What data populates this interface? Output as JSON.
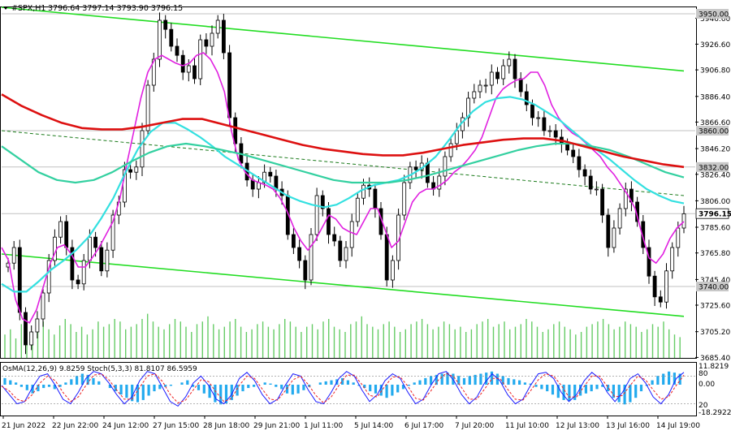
{
  "header": {
    "symbol_text": "#SPX,H1",
    "ohlc_text": "3796.64 3797.14 3793.90 3796.15"
  },
  "colors": {
    "background": "#ffffff",
    "candle": "#000000",
    "channel": "#22dd22",
    "ema_magenta": "#e020e0",
    "ema_cyan": "#33e0e0",
    "ema_teal": "#33d0a0",
    "ema_red": "#dd1010",
    "volume": "#66cc66",
    "osma_bar": "#22aaee",
    "stoch_main": "#1a1aff",
    "stoch_signal": "#ee2222",
    "price_tag_bg": "#c8c8c8"
  },
  "chart_data": {
    "type": "line",
    "title": "#SPX,H1",
    "ohlc": {
      "open": 3796.64,
      "high": 3797.14,
      "low": 3793.9,
      "close": 3796.15
    },
    "ylim": [
      3685.0,
      3955.0
    ],
    "y_ticks": [
      "3946.60",
      "3926.60",
      "3906.80",
      "3886.40",
      "3866.60",
      "3846.20",
      "3826.40",
      "3806.00",
      "3785.60",
      "3765.80",
      "3745.40",
      "3725.60",
      "3705.20",
      "3685.40"
    ],
    "x_ticks": [
      "21 Jun 2022",
      "22 Jun 22:00",
      "24 Jun 12:00",
      "27 Jun 15:00",
      "28 Jun 18:00",
      "29 Jun 21:00",
      "1 Jul 11:00",
      "5 Jul 14:00",
      "6 Jul 17:00",
      "7 Jul 20:00",
      "11 Jul 10:00",
      "12 Jul 13:00",
      "13 Jul 16:00",
      "14 Jul 19:00"
    ],
    "price_levels": [
      {
        "label": "3950.00",
        "value": 3950.0
      },
      {
        "label": "3860.00",
        "value": 3860.0
      },
      {
        "label": "3832.00",
        "value": 3832.0
      },
      {
        "label": "3796.15",
        "value": 3796.15,
        "current": true
      },
      {
        "label": "3740.00",
        "value": 3740.0
      }
    ],
    "close_series": [
      3758,
      3770,
      3720,
      3695,
      3705,
      3715,
      3735,
      3760,
      3778,
      3790,
      3770,
      3745,
      3742,
      3760,
      3778,
      3770,
      3752,
      3768,
      3795,
      3805,
      3830,
      3828,
      3832,
      3860,
      3895,
      3915,
      3945,
      3938,
      3925,
      3918,
      3905,
      3910,
      3900,
      3930,
      3925,
      3935,
      3945,
      3920,
      3870,
      3850,
      3835,
      3822,
      3815,
      3820,
      3828,
      3825,
      3815,
      3810,
      3780,
      3770,
      3760,
      3745,
      3780,
      3810,
      3800,
      3780,
      3775,
      3760,
      3770,
      3790,
      3808,
      3818,
      3815,
      3800,
      3780,
      3745,
      3760,
      3795,
      3820,
      3832,
      3830,
      3835,
      3820,
      3815,
      3825,
      3840,
      3850,
      3860,
      3870,
      3885,
      3890,
      3895,
      3895,
      3905,
      3900,
      3910,
      3915,
      3900,
      3890,
      3880,
      3870,
      3870,
      3860,
      3860,
      3855,
      3850,
      3845,
      3840,
      3830,
      3825,
      3815,
      3815,
      3795,
      3770,
      3785,
      3800,
      3815,
      3805,
      3790,
      3770,
      3748,
      3732,
      3728,
      3752,
      3770,
      3785,
      3796
    ],
    "indicators": [
      {
        "name": "EMA magenta",
        "values": [
          3770,
          3760,
          3730,
          3715,
          3712,
          3722,
          3740,
          3758,
          3770,
          3772,
          3765,
          3755,
          3755,
          3762,
          3770,
          3780,
          3790,
          3808,
          3835,
          3860,
          3885,
          3905,
          3915,
          3918,
          3915,
          3912,
          3910,
          3912,
          3918,
          3920,
          3915,
          3905,
          3890,
          3860,
          3838,
          3828,
          3822,
          3820,
          3818,
          3815,
          3808,
          3798,
          3785,
          3775,
          3768,
          3775,
          3785,
          3795,
          3792,
          3785,
          3782,
          3780,
          3790,
          3800,
          3800,
          3785,
          3770,
          3775,
          3790,
          3805,
          3812,
          3815,
          3815,
          3818,
          3822,
          3828,
          3832,
          3838,
          3845,
          3855,
          3870,
          3885,
          3892,
          3896,
          3899,
          3900,
          3905,
          3905,
          3895,
          3880,
          3870,
          3863,
          3858,
          3855,
          3850,
          3845,
          3840,
          3832,
          3826,
          3818,
          3810,
          3800,
          3780,
          3762,
          3758,
          3765,
          3777,
          3785,
          3790
        ]
      },
      {
        "name": "EMA cyan",
        "values": [
          3742,
          3736,
          3736,
          3744,
          3753,
          3760,
          3768,
          3778,
          3792,
          3808,
          3828,
          3846,
          3859,
          3866,
          3866,
          3861,
          3855,
          3848,
          3840,
          3834,
          3828,
          3822,
          3816,
          3810,
          3806,
          3803,
          3801,
          3803,
          3808,
          3814,
          3818,
          3820,
          3822,
          3826,
          3832,
          3840,
          3852,
          3865,
          3875,
          3882,
          3885,
          3886,
          3884,
          3880,
          3874,
          3868,
          3860,
          3852,
          3845,
          3838,
          3830,
          3822,
          3815,
          3810,
          3806,
          3804
        ]
      },
      {
        "name": "EMA teal",
        "values": [
          3848,
          3838,
          3828,
          3822,
          3820,
          3822,
          3828,
          3836,
          3843,
          3848,
          3850,
          3848,
          3845,
          3842,
          3838,
          3834,
          3830,
          3826,
          3822,
          3820,
          3820,
          3820,
          3822,
          3825,
          3829,
          3833,
          3837,
          3841,
          3845,
          3848,
          3850,
          3850,
          3848,
          3845,
          3840,
          3834,
          3828,
          3824
        ]
      },
      {
        "name": "EMA red",
        "values": [
          3888,
          3879,
          3872,
          3866,
          3862,
          3861,
          3861,
          3863,
          3866,
          3869,
          3869,
          3865,
          3861,
          3857,
          3853,
          3849,
          3846,
          3844,
          3842,
          3841,
          3841,
          3843,
          3846,
          3849,
          3851,
          3853,
          3854,
          3854,
          3852,
          3848,
          3844,
          3840,
          3837,
          3834,
          3832
        ]
      }
    ],
    "channel": {
      "upper": [
        [
          0,
          3955
        ],
        [
          1,
          3906
        ]
      ],
      "lower": [
        [
          0,
          3765
        ],
        [
          1,
          3717
        ]
      ],
      "middle": [
        [
          0,
          3860
        ],
        [
          1,
          3810
        ]
      ]
    },
    "volume": [
      18,
      22,
      15,
      26,
      30,
      20,
      24,
      28,
      22,
      18,
      25,
      30,
      26,
      20,
      24,
      18,
      22,
      28,
      24,
      26,
      30,
      28,
      22,
      24,
      26,
      30,
      34,
      28,
      24,
      22,
      26,
      30,
      28,
      24,
      20,
      26,
      28,
      32,
      26,
      22,
      24,
      28,
      30,
      24,
      20,
      22,
      26,
      28,
      24,
      22,
      26,
      30,
      28,
      24,
      20,
      24,
      26,
      22,
      28,
      30,
      24,
      22,
      20,
      26,
      28,
      32,
      26,
      24,
      22,
      26,
      28,
      24,
      20,
      22,
      26,
      28,
      30,
      26,
      22,
      24,
      28,
      26,
      22,
      24,
      20,
      22,
      26,
      28,
      30,
      24,
      26,
      28,
      22,
      24,
      26,
      30,
      28,
      24,
      20,
      22,
      26,
      28,
      24,
      22,
      18,
      20,
      24,
      26,
      28,
      30,
      26,
      22,
      24,
      28,
      26,
      24,
      20,
      22,
      26,
      24,
      28,
      22,
      18,
      16
    ],
    "oscillator": {
      "label": "OsMA(12,26,9) 9.8259  Stoch(5,3,3) 81.8107 86.5959",
      "right_labels": [
        "11.8219",
        "80",
        "0.00",
        "20",
        "-18.2922"
      ],
      "osma_values": [
        6,
        4,
        2,
        -2,
        -5,
        -8,
        -6,
        -3,
        -2,
        -4,
        -2,
        2,
        5,
        8,
        10,
        9,
        6,
        3,
        0,
        -3,
        -6,
        -9,
        -12,
        -15,
        -16,
        -14,
        -10,
        -6,
        -4,
        -2,
        -1,
        0,
        2,
        4,
        -2,
        -5,
        -8,
        -12,
        -16,
        -18,
        -17,
        -14,
        -10,
        -6,
        -3,
        -2,
        0,
        2,
        1,
        -2,
        -4,
        -8,
        -9,
        -8,
        -5,
        -2,
        0,
        2,
        3,
        4,
        5,
        6,
        4,
        2,
        -1,
        -3,
        -6,
        -8,
        -10,
        -12,
        -10,
        -7,
        -4,
        -1,
        2,
        4,
        6,
        8,
        9,
        10,
        11,
        10,
        8,
        6,
        8,
        9,
        10,
        11,
        12,
        10,
        8,
        6,
        5,
        4,
        2,
        1,
        -2,
        -4,
        -6,
        -9,
        -12,
        -14,
        -15,
        -14,
        -10,
        -8,
        -6,
        -4,
        -2,
        -6,
        -12,
        -16,
        -18,
        -16,
        -12,
        -6,
        -1,
        4,
        8,
        10,
        12,
        11,
        10
      ],
      "stoch_main": [
        60,
        40,
        20,
        25,
        55,
        80,
        85,
        60,
        30,
        20,
        45,
        75,
        90,
        85,
        65,
        40,
        20,
        35,
        70,
        90,
        85,
        55,
        25,
        15,
        35,
        65,
        80,
        60,
        30,
        20,
        40,
        75,
        88,
        70,
        40,
        20,
        30,
        60,
        85,
        80,
        50,
        25,
        20,
        45,
        75,
        90,
        80,
        50,
        25,
        40,
        70,
        85,
        75,
        45,
        20,
        30,
        60,
        85,
        90,
        70,
        40,
        20,
        35,
        65,
        85,
        70,
        40,
        20,
        30,
        60,
        85,
        88,
        75,
        45,
        25,
        40,
        70,
        88,
        75,
        45,
        25,
        45,
        75,
        85,
        65,
        35,
        20,
        40,
        75,
        88
      ],
      "stoch_signal": [
        58,
        48,
        30,
        25,
        40,
        65,
        80,
        70,
        45,
        25,
        35,
        60,
        82,
        85,
        72,
        50,
        30,
        30,
        55,
        80,
        85,
        68,
        40,
        22,
        28,
        50,
        72,
        68,
        45,
        25,
        32,
        60,
        80,
        75,
        52,
        30,
        28,
        48,
        72,
        80,
        62,
        38,
        22,
        35,
        60,
        82,
        82,
        62,
        38,
        35,
        58,
        78,
        78,
        58,
        32,
        28,
        48,
        72,
        86,
        78,
        55,
        30,
        30,
        52,
        75,
        75,
        52,
        30,
        28,
        48,
        72,
        85,
        80,
        60,
        35,
        35,
        58,
        80,
        80,
        58,
        35,
        38,
        60,
        80,
        72,
        50,
        30,
        35,
        60,
        82
      ]
    }
  }
}
